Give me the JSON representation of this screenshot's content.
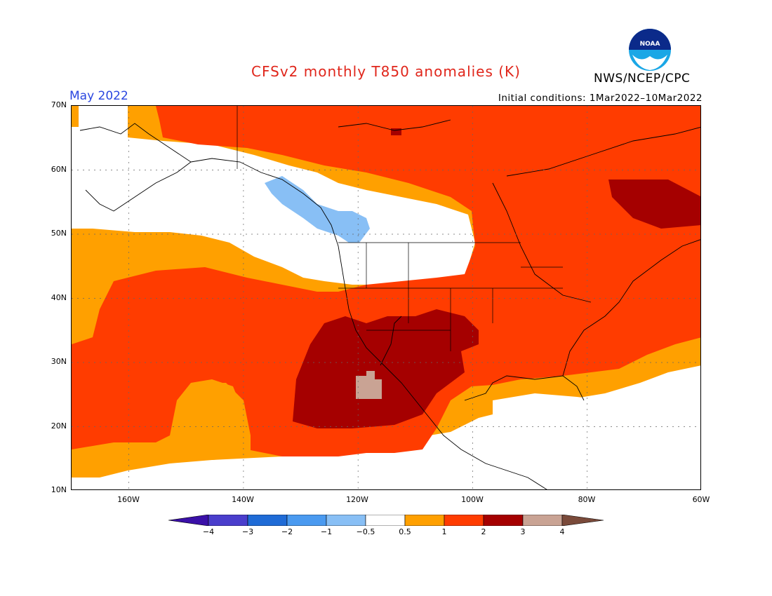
{
  "header": {
    "title": "CFSv2 monthly T850 anomalies (K)",
    "agency": "NWS/NCEP/CPC",
    "valid_month": "May 2022",
    "initial_conditions": "Initial conditions: 1Mar2022–10Mar2022",
    "logo_text": "NOAA"
  },
  "map": {
    "lat_labels": [
      "70N",
      "60N",
      "50N",
      "40N",
      "30N",
      "20N",
      "10N"
    ],
    "lon_labels": [
      "160W",
      "140W",
      "120W",
      "100W",
      "80W",
      "60W"
    ]
  },
  "colorbar": {
    "labels": [
      "−4",
      "−3",
      "−2",
      "−1",
      "−0.5",
      "0.5",
      "1",
      "2",
      "3",
      "4"
    ],
    "colors": [
      "#3a10a8",
      "#4a3ecc",
      "#1f6bd6",
      "#4a9af0",
      "#88bff5",
      "#ffffff",
      "#ffa000",
      "#ff3c00",
      "#a50000",
      "#c9a394",
      "#7a4a3a"
    ]
  },
  "chart_data": {
    "type": "heatmap",
    "title": "CFSv2 monthly T850 anomalies (K)",
    "xlabel": "",
    "ylabel": "",
    "xlim": [
      -170,
      -60
    ],
    "ylim": [
      10,
      70
    ],
    "color_levels": [
      -4,
      -3,
      -2,
      -1,
      -0.5,
      0.5,
      1,
      2,
      3,
      4
    ]
  }
}
